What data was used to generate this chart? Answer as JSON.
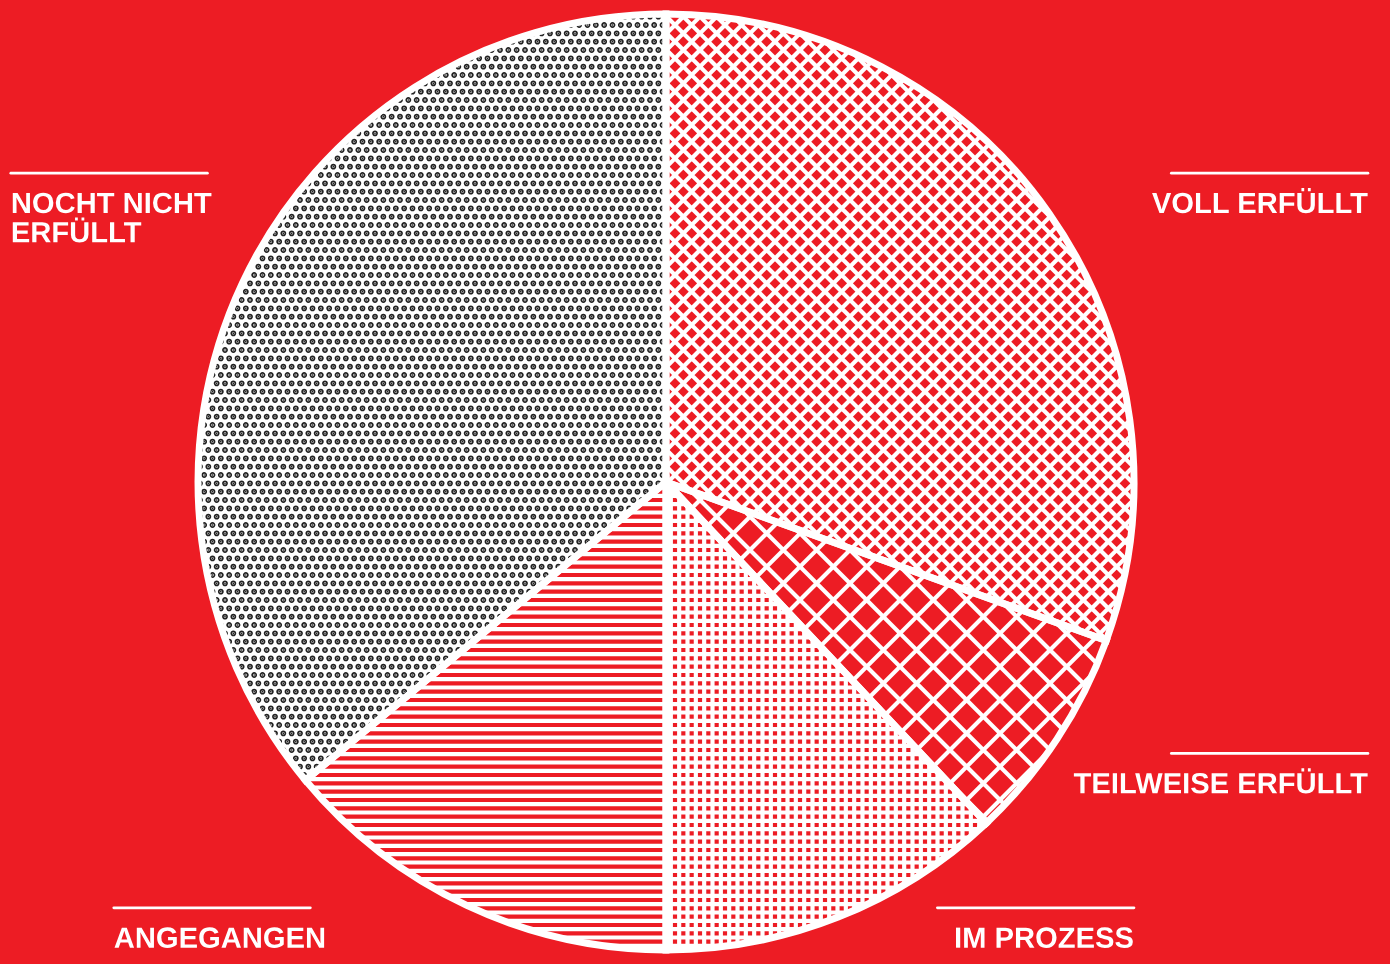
{
  "chart_data": {
    "type": "pie",
    "categories": [
      "VOLL ERFÜLLT",
      "TEILWEISE ERFÜLLT",
      "IM PROZESS",
      "ANGEGANGEN",
      "NOCHT NICHT\nERFÜLLT"
    ],
    "values": [
      30.5,
      7.5,
      12,
      14,
      36
    ],
    "colors": [
      "#ed1c24",
      "#ed1c24",
      "#ed1c24",
      "#ed1c24",
      "#ffffff"
    ],
    "legend": false
  }
}
